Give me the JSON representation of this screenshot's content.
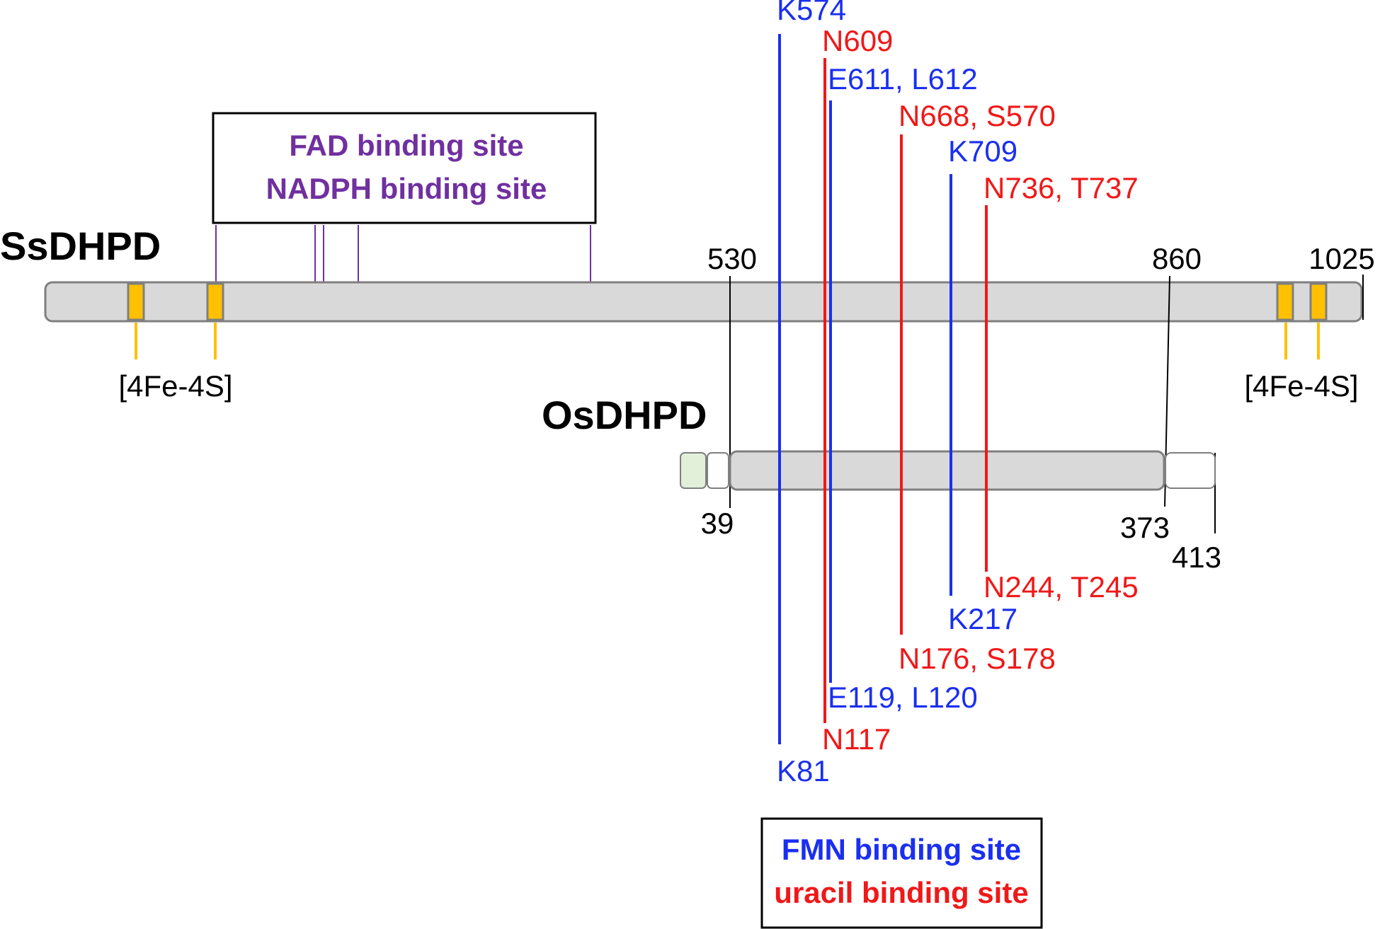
{
  "proteins": {
    "ss": {
      "name": "SsDHPD",
      "start_label": "530",
      "mid_label": "860",
      "end_label": "1025"
    },
    "os": {
      "name": "OsDHPD",
      "start_label": "39",
      "mid_label": "373",
      "end_label": "413"
    }
  },
  "fe_s": {
    "left_label": "[4Fe-4S]",
    "right_label": "[4Fe-4S]"
  },
  "fad_box": {
    "line1": "FAD binding site",
    "line2": "NADPH binding site"
  },
  "legend": {
    "fmn": "FMN binding site",
    "uracil": "uracil binding site"
  },
  "sites": [
    {
      "kind": "fmn",
      "ss_label": "K574",
      "os_label": "K81"
    },
    {
      "kind": "uracil",
      "ss_label": "N609",
      "os_label": "N117"
    },
    {
      "kind": "fmn",
      "ss_label": "E611, L612",
      "os_label": "E119, L120"
    },
    {
      "kind": "uracil",
      "ss_label": "N668, S570",
      "os_label": "N176, S178"
    },
    {
      "kind": "fmn",
      "ss_label": "K709",
      "os_label": "K217"
    },
    {
      "kind": "uracil",
      "ss_label": "N736, T737",
      "os_label": "N244, T245"
    }
  ],
  "colors": {
    "fmn": "#1a2ff0",
    "uracil": "#f01818",
    "fad": "#7030a0",
    "fes": "#ffc000",
    "bar_fill": "#d9d9d9",
    "bar_stroke": "#7f7f7f",
    "signal_fill": "#e2f0d9"
  }
}
